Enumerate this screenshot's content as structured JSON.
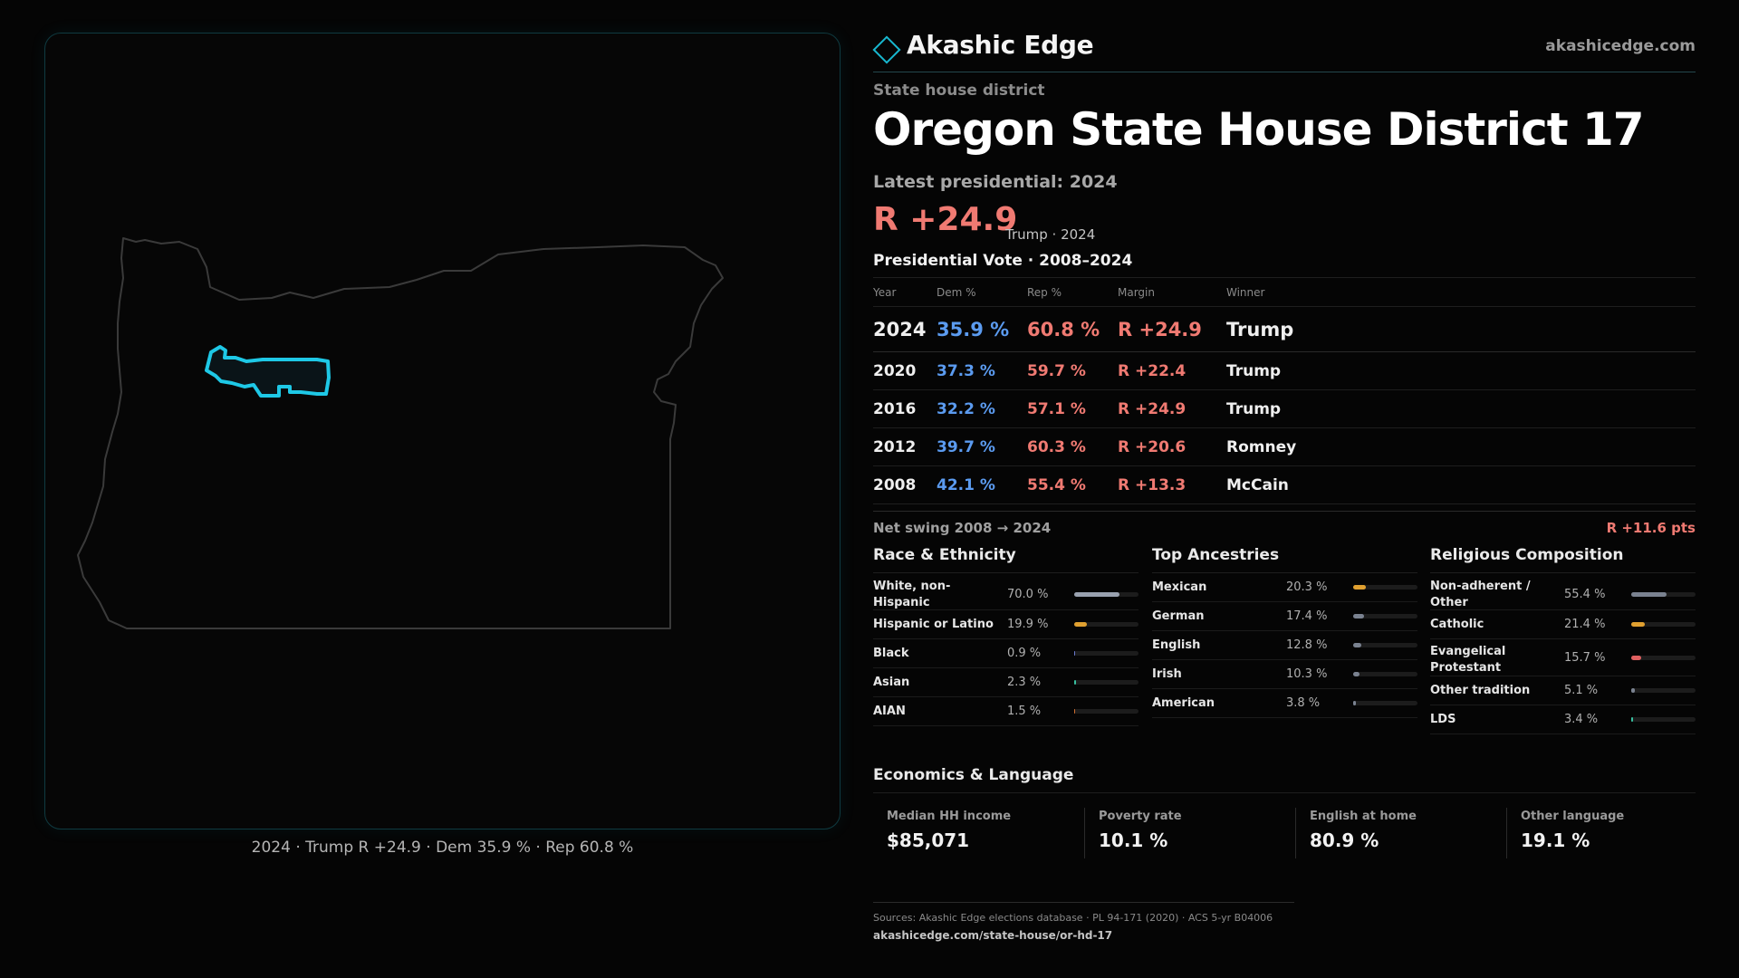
{
  "map": {
    "caption": "2024 · Trump R +24.9 · Dem 35.9 % · Rep 60.8 %",
    "state_outline_color": "#3a3a3a",
    "district_highlight_color": "#1ec8e6"
  },
  "header": {
    "brand": "Akashic Edge",
    "site": "akashicedge.com",
    "accent_color": "#18b8d0"
  },
  "district": {
    "kicker": "State house district",
    "title": "Oregon State House District 17",
    "latest_label": "Latest presidential: 2024",
    "margin": "R +24.9",
    "margin_sub": "Trump · 2024"
  },
  "presidential": {
    "title": "Presidential Vote · 2008–2024",
    "headers": {
      "year": "Year",
      "dem": "Dem %",
      "rep": "Rep %",
      "margin": "Margin",
      "winner": "Winner"
    },
    "rows": [
      {
        "year": "2024",
        "dem": "35.9 %",
        "rep": "60.8 %",
        "margin": "R +24.9",
        "winner": "Trump"
      },
      {
        "year": "2020",
        "dem": "37.3 %",
        "rep": "59.7 %",
        "margin": "R +22.4",
        "winner": "Trump"
      },
      {
        "year": "2016",
        "dem": "32.2 %",
        "rep": "57.1 %",
        "margin": "R +24.9",
        "winner": "Trump"
      },
      {
        "year": "2012",
        "dem": "39.7 %",
        "rep": "60.3 %",
        "margin": "R +20.6",
        "winner": "Romney"
      },
      {
        "year": "2008",
        "dem": "42.1 %",
        "rep": "55.4 %",
        "margin": "R +13.3",
        "winner": "McCain"
      }
    ],
    "swing_label": "Net swing 2008 → 2024",
    "swing_value": "R +11.6 pts"
  },
  "race": {
    "title": "Race & Ethnicity",
    "rows": [
      {
        "label": "White, non-Hispanic",
        "pct": "70.0 %",
        "value": 70.0,
        "color": "#9aa2b0"
      },
      {
        "label": "Hispanic or Latino",
        "pct": "19.9 %",
        "value": 19.9,
        "color": "#e0a030"
      },
      {
        "label": "Black",
        "pct": "0.9 %",
        "value": 0.9,
        "color": "#6b7bd0"
      },
      {
        "label": "Asian",
        "pct": "2.3 %",
        "value": 2.3,
        "color": "#38c0a0"
      },
      {
        "label": "AIAN",
        "pct": "1.5 %",
        "value": 1.5,
        "color": "#d07030"
      }
    ]
  },
  "ancestry": {
    "title": "Top Ancestries",
    "rows": [
      {
        "label": "Mexican",
        "pct": "20.3 %",
        "value": 20.3,
        "color": "#e0a030"
      },
      {
        "label": "German",
        "pct": "17.4 %",
        "value": 17.4,
        "color": "#7a8290"
      },
      {
        "label": "English",
        "pct": "12.8 %",
        "value": 12.8,
        "color": "#7a8290"
      },
      {
        "label": "Irish",
        "pct": "10.3 %",
        "value": 10.3,
        "color": "#7a8290"
      },
      {
        "label": "American",
        "pct": "3.8 %",
        "value": 3.8,
        "color": "#7a8290"
      }
    ]
  },
  "religion": {
    "title": "Religious Composition",
    "rows": [
      {
        "label": "Non-adherent / Other",
        "pct": "55.4 %",
        "value": 55.4,
        "color": "#7a8290"
      },
      {
        "label": "Catholic",
        "pct": "21.4 %",
        "value": 21.4,
        "color": "#e0a030"
      },
      {
        "label": "Evangelical Protestant",
        "pct": "15.7 %",
        "value": 15.7,
        "color": "#e06060"
      },
      {
        "label": "Other tradition",
        "pct": "5.1 %",
        "value": 5.1,
        "color": "#7a8290"
      },
      {
        "label": "LDS",
        "pct": "3.4 %",
        "value": 3.4,
        "color": "#38c0a0"
      }
    ]
  },
  "economics": {
    "title": "Economics & Language",
    "cells": [
      {
        "label": "Median HH income",
        "value": "$85,071"
      },
      {
        "label": "Poverty rate",
        "value": "10.1 %"
      },
      {
        "label": "English at home",
        "value": "80.9 %"
      },
      {
        "label": "Other language",
        "value": "19.1 %"
      }
    ]
  },
  "sources": {
    "line": "Sources: Akashic Edge elections database · PL 94-171 (2020) · ACS 5-yr B04006",
    "url": "akashicedge.com/state-house/or-hd-17"
  }
}
